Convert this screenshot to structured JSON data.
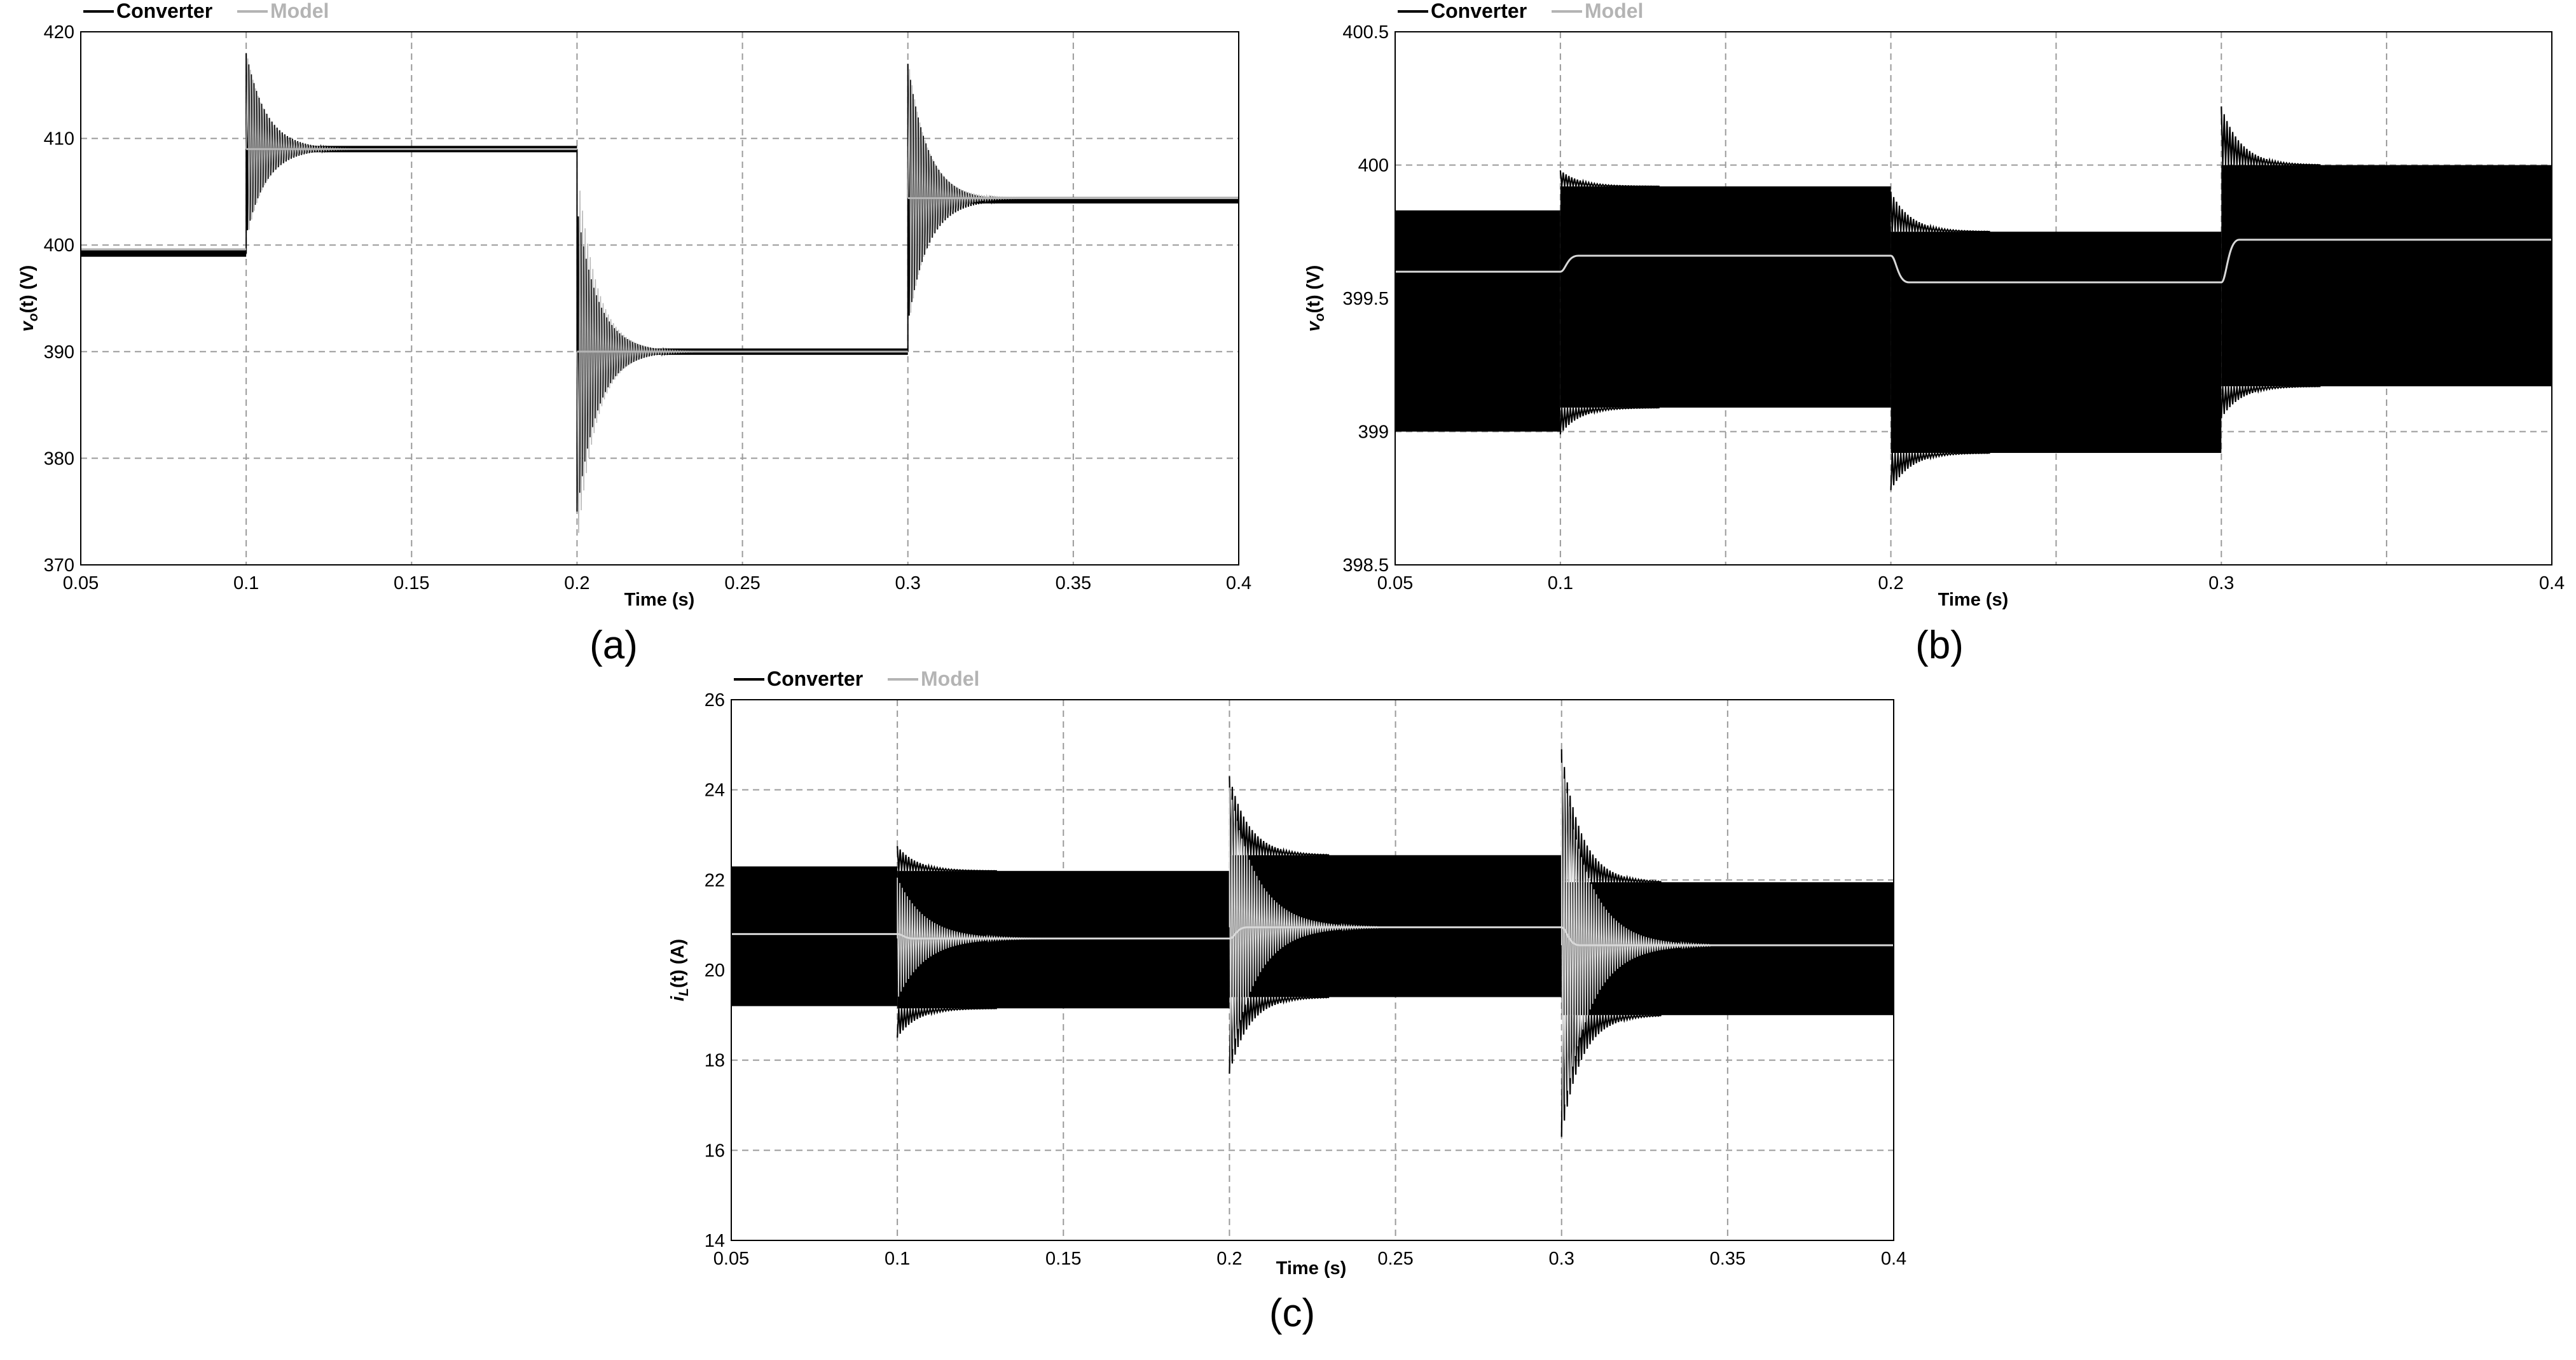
{
  "colors": {
    "converter": "#000000",
    "model": "#b4b4b4",
    "grid": "#9a9a9a",
    "model_on_band": "#d8d8d8"
  },
  "chart_data": [
    {
      "id": "a",
      "type": "line",
      "caption": "(a)",
      "xlabel": "Time (s)",
      "ylabel": "v_o(t) (V)",
      "xlim": [
        0.05,
        0.4
      ],
      "ylim": [
        370,
        420
      ],
      "xticks": [
        "0.05",
        "0.1",
        "0.15",
        "0.2",
        "0.25",
        "0.3",
        "0.35",
        "0.4"
      ],
      "yticks": [
        "370",
        "380",
        "390",
        "400",
        "410",
        "420"
      ],
      "grid": true,
      "legend": "top-left",
      "series": [
        {
          "name": "Converter",
          "segments": [
            {
              "t0": 0.05,
              "t1": 0.1,
              "level": 399.2,
              "ripple": 0.6
            },
            {
              "t0": 0.1,
              "t1": 0.2,
              "level": 409.0,
              "ripple": 0.6,
              "overshoot": 418.0,
              "undershoot": 401.0
            },
            {
              "t0": 0.2,
              "t1": 0.3,
              "level": 390.0,
              "ripple": 0.6,
              "overshoot": 375.0,
              "undershoot": 406.0
            },
            {
              "t0": 0.3,
              "t1": 0.4,
              "level": 404.2,
              "ripple": 0.6,
              "overshoot": 417.0,
              "undershoot": 393.0
            }
          ]
        },
        {
          "name": "Model",
          "segments": [
            {
              "t0": 0.05,
              "t1": 0.1,
              "level": 399.6
            },
            {
              "t0": 0.1,
              "t1": 0.2,
              "level": 409.0,
              "overshoot": 417.5,
              "undershoot": 401.5
            },
            {
              "t0": 0.2,
              "t1": 0.3,
              "level": 390.0,
              "overshoot": 373.0,
              "undershoot": 407.0
            },
            {
              "t0": 0.3,
              "t1": 0.4,
              "level": 404.4,
              "overshoot": 416.5,
              "undershoot": 393.5
            }
          ]
        }
      ]
    },
    {
      "id": "b",
      "type": "line",
      "caption": "(b)",
      "xlabel": "Time (s)",
      "ylabel": "v_o(t) (V)",
      "xlim": [
        0.05,
        0.4
      ],
      "ylim": [
        398.5,
        400.5
      ],
      "xticks": [
        "0.05",
        "0.1",
        "0.15",
        "0.2",
        "0.25",
        "0.3",
        "0.35",
        "0.4"
      ],
      "xticks_shown": [
        "0.05",
        "0.1",
        "0.2",
        "0.3",
        "0.4"
      ],
      "yticks": [
        "398.5",
        "399",
        "399.5",
        "400",
        "400.5"
      ],
      "grid": true,
      "legend": "top-left",
      "series": [
        {
          "name": "Converter",
          "segments": [
            {
              "t0": 0.05,
              "t1": 0.1,
              "upper": 399.83,
              "lower": 399.0
            },
            {
              "t0": 0.1,
              "t1": 0.2,
              "upper": 399.92,
              "lower": 399.09,
              "peak_hi": 399.98,
              "peak_lo": 398.99
            },
            {
              "t0": 0.2,
              "t1": 0.3,
              "upper": 399.75,
              "lower": 398.92,
              "peak_hi": 399.9,
              "peak_lo": 398.78
            },
            {
              "t0": 0.3,
              "t1": 0.4,
              "upper": 400.0,
              "lower": 399.17,
              "peak_hi": 400.22,
              "peak_lo": 399.05
            }
          ]
        },
        {
          "name": "Model",
          "segments": [
            {
              "t0": 0.05,
              "t1": 0.1,
              "level": 399.6
            },
            {
              "t0": 0.1,
              "t1": 0.2,
              "level": 399.66
            },
            {
              "t0": 0.2,
              "t1": 0.3,
              "level": 399.56
            },
            {
              "t0": 0.3,
              "t1": 0.4,
              "level": 399.72
            }
          ]
        }
      ]
    },
    {
      "id": "c",
      "type": "line",
      "caption": "(c)",
      "xlabel": "Time (s)",
      "ylabel": "i_L(t) (A)",
      "xlim": [
        0.05,
        0.4
      ],
      "ylim": [
        14,
        26
      ],
      "xticks": [
        "0.05",
        "0.1",
        "0.15",
        "0.2",
        "0.25",
        "0.3",
        "0.35",
        "0.4"
      ],
      "yticks": [
        "14",
        "16",
        "18",
        "20",
        "22",
        "24",
        "26"
      ],
      "grid": true,
      "legend": "top-left",
      "series": [
        {
          "name": "Converter",
          "segments": [
            {
              "t0": 0.05,
              "t1": 0.1,
              "upper": 22.3,
              "lower": 19.2
            },
            {
              "t0": 0.1,
              "t1": 0.2,
              "upper": 22.2,
              "lower": 19.15,
              "peak_hi": 22.75,
              "peak_lo": 18.5
            },
            {
              "t0": 0.2,
              "t1": 0.3,
              "upper": 22.55,
              "lower": 19.4,
              "peak_hi": 24.3,
              "peak_lo": 17.7
            },
            {
              "t0": 0.3,
              "t1": 0.4,
              "upper": 21.95,
              "lower": 19.0,
              "peak_hi": 24.9,
              "peak_lo": 16.3
            }
          ]
        },
        {
          "name": "Model",
          "segments": [
            {
              "t0": 0.05,
              "t1": 0.1,
              "level": 20.8
            },
            {
              "t0": 0.1,
              "t1": 0.2,
              "level": 20.7,
              "overshoot_hi": 22.2,
              "overshoot_lo": 19.5
            },
            {
              "t0": 0.2,
              "t1": 0.3,
              "level": 20.95,
              "overshoot_hi": 24.1,
              "overshoot_lo": 17.9
            },
            {
              "t0": 0.3,
              "t1": 0.4,
              "level": 20.55,
              "overshoot_hi": 24.6,
              "overshoot_lo": 16.5
            }
          ]
        }
      ]
    }
  ]
}
